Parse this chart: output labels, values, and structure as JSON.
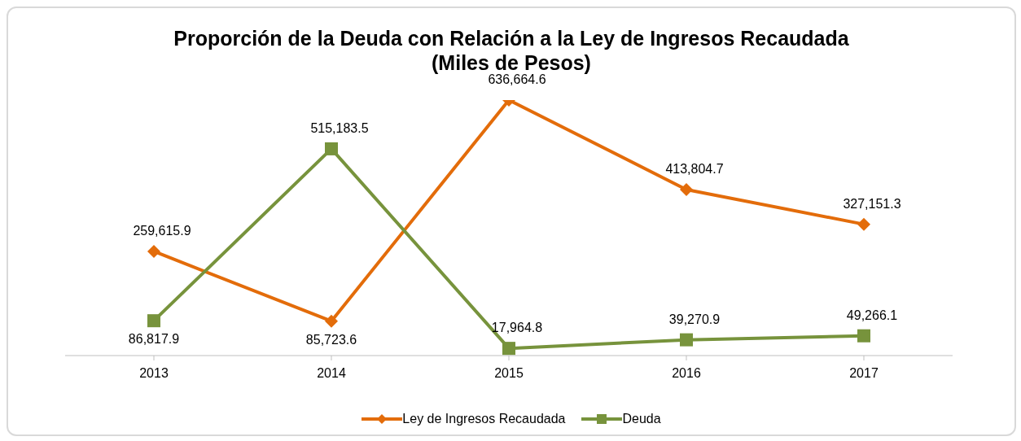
{
  "chart_data": {
    "type": "line",
    "title": "Proporción de la Deuda con Relación a la Ley de  Ingresos Recaudada",
    "subtitle": "(Miles de Pesos)",
    "categories": [
      "2013",
      "2014",
      "2015",
      "2016",
      "2017"
    ],
    "legend": "bottom",
    "series": [
      {
        "name": "Ley de Ingresos Recaudada",
        "color": "#e36c0a",
        "marker": "diamond",
        "values": [
          259615.9,
          85723.6,
          636664.6,
          413804.7,
          327151.3
        ],
        "value_labels": [
          "259,615.9",
          "85,723.6",
          "636,664.6",
          "413,804.7",
          "327,151.3"
        ]
      },
      {
        "name": "Deuda",
        "color": "#77933c",
        "marker": "square",
        "values": [
          86817.9,
          515183.5,
          17964.8,
          39270.9,
          49266.1
        ],
        "value_labels": [
          "86,817.9",
          "515,183.5",
          "17,964.8",
          "39,270.9",
          "49,266.1"
        ]
      }
    ]
  }
}
